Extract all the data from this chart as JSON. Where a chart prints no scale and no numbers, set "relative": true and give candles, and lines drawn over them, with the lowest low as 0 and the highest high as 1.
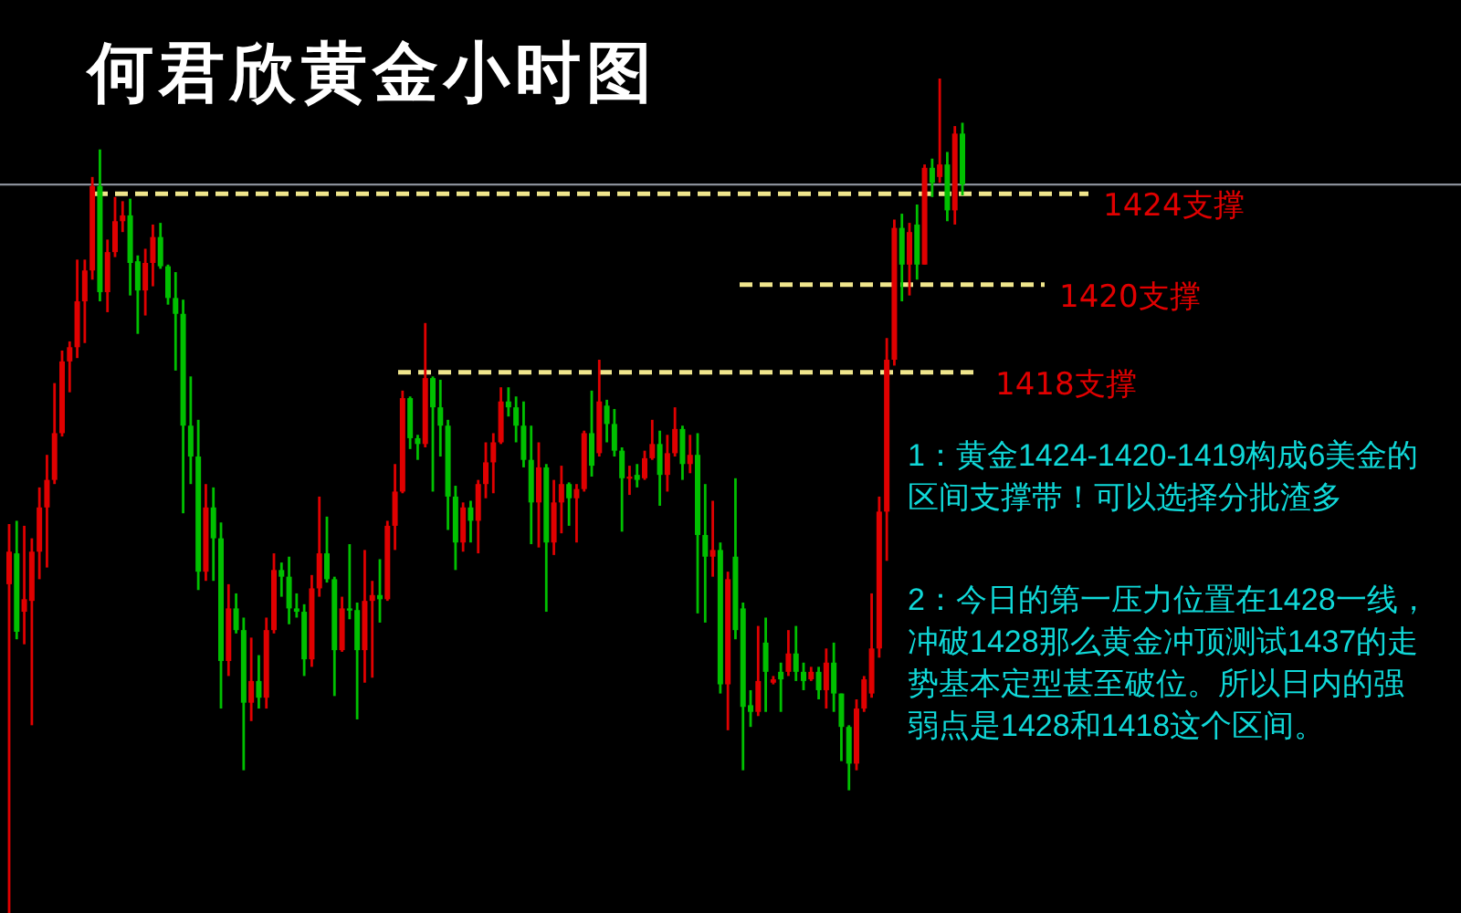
{
  "chart_data": {
    "type": "candlestick",
    "title": "何君欣黄金小时图",
    "relative": true,
    "categories": [
      null,
      null,
      null,
      null,
      null,
      null,
      null,
      null,
      null,
      null,
      null,
      null,
      null,
      null,
      null,
      null,
      null,
      null,
      null,
      null,
      null,
      null,
      null,
      null,
      null,
      null,
      null,
      null,
      null,
      null,
      null,
      null,
      null,
      null,
      null,
      null,
      null,
      null,
      null,
      null,
      null,
      null,
      null,
      null,
      null,
      null,
      null,
      null,
      null,
      null,
      null,
      null,
      null,
      null,
      null,
      null,
      null,
      null,
      null,
      null,
      null,
      null,
      null,
      null,
      null,
      null,
      null,
      null,
      null,
      null,
      null,
      null,
      null,
      null,
      null,
      null,
      null,
      null,
      null,
      null,
      null,
      null,
      null,
      null,
      null,
      null,
      null,
      null,
      null,
      null,
      null,
      null,
      null,
      null,
      null,
      null,
      null,
      null,
      null,
      null,
      null,
      null,
      null,
      null,
      null,
      null,
      null,
      null,
      null,
      null,
      null,
      null,
      null,
      null,
      null,
      null,
      null,
      null,
      null,
      null,
      null,
      null,
      null,
      null,
      null,
      null,
      null
    ],
    "ohlc": [
      [
        0.394,
        0.466,
        0,
        0.433
      ],
      [
        0.431,
        0.47,
        0.328,
        0.337
      ],
      [
        0.361,
        0.464,
        0.322,
        0.376
      ],
      [
        0.374,
        0.449,
        0.225,
        0.433
      ],
      [
        0.433,
        0.51,
        0.4,
        0.486
      ],
      [
        0.486,
        0.549,
        0.414,
        0.519
      ],
      [
        0.519,
        0.635,
        0.514,
        0.575
      ],
      [
        0.575,
        0.674,
        0.571,
        0.661
      ],
      [
        0.661,
        0.685,
        0.624,
        0.678
      ],
      [
        0.678,
        0.783,
        0.665,
        0.733
      ],
      [
        0.733,
        0.783,
        0.683,
        0.77
      ],
      [
        0.77,
        0.882,
        0.759,
        0.871
      ],
      [
        0.871,
        0.915,
        0.733,
        0.744
      ],
      [
        0.744,
        0.807,
        0.72,
        0.792
      ],
      [
        0.792,
        0.858,
        0.786,
        0.829
      ],
      [
        0.829,
        0.853,
        0.816,
        0.836
      ],
      [
        0.836,
        0.856,
        0.74,
        0.779
      ],
      [
        0.781,
        0.788,
        0.694,
        0.746
      ],
      [
        0.746,
        0.796,
        0.716,
        0.779
      ],
      [
        0.779,
        0.825,
        0.751,
        0.81
      ],
      [
        0.81,
        0.827,
        0.772,
        0.775
      ],
      [
        0.775,
        0.777,
        0.729,
        0.737
      ],
      [
        0.737,
        0.768,
        0.65,
        0.718
      ],
      [
        0.718,
        0.735,
        0.479,
        0.584
      ],
      [
        0.584,
        0.643,
        0.514,
        0.547
      ],
      [
        0.547,
        0.591,
        0.387,
        0.409
      ],
      [
        0.409,
        0.514,
        0.398,
        0.486
      ],
      [
        0.486,
        0.51,
        0.398,
        0.449
      ],
      [
        0.449,
        0.468,
        0.245,
        0.302
      ],
      [
        0.302,
        0.394,
        0.284,
        0.365
      ],
      [
        0.365,
        0.383,
        0.335,
        0.339
      ],
      [
        0.339,
        0.354,
        0.171,
        0.252
      ],
      [
        0.252,
        0.33,
        0.23,
        0.278
      ],
      [
        0.278,
        0.309,
        0.245,
        0.258
      ],
      [
        0.258,
        0.354,
        0.245,
        0.339
      ],
      [
        0.339,
        0.431,
        0.335,
        0.411
      ],
      [
        0.411,
        0.42,
        0.379,
        0.403
      ],
      [
        0.403,
        0.427,
        0.346,
        0.365
      ],
      [
        0.365,
        0.383,
        0.354,
        0.361
      ],
      [
        0.361,
        0.37,
        0.284,
        0.304
      ],
      [
        0.304,
        0.405,
        0.295,
        0.389
      ],
      [
        0.389,
        0.499,
        0.379,
        0.431
      ],
      [
        0.431,
        0.475,
        0.396,
        0.4
      ],
      [
        0.4,
        0.403,
        0.26,
        0.315
      ],
      [
        0.315,
        0.379,
        0.313,
        0.365
      ],
      [
        0.365,
        0.442,
        0.352,
        0.363
      ],
      [
        0.363,
        0.372,
        0.232,
        0.315
      ],
      [
        0.315,
        0.435,
        0.276,
        0.374
      ],
      [
        0.374,
        0.398,
        0.282,
        0.381
      ],
      [
        0.381,
        0.424,
        0.348,
        0.376
      ],
      [
        0.376,
        0.47,
        0.374,
        0.464
      ],
      [
        0.464,
        0.538,
        0.435,
        0.505
      ],
      [
        0.505,
        0.626,
        0.503,
        0.617
      ],
      [
        0.617,
        0.619,
        0.556,
        0.569
      ],
      [
        0.569,
        0.573,
        0.543,
        0.562
      ],
      [
        0.562,
        0.707,
        0.558,
        0.641
      ],
      [
        0.641,
        0.643,
        0.505,
        0.606
      ],
      [
        0.606,
        0.639,
        0.547,
        0.584
      ],
      [
        0.584,
        0.591,
        0.459,
        0.499
      ],
      [
        0.499,
        0.512,
        0.411,
        0.444
      ],
      [
        0.444,
        0.492,
        0.433,
        0.486
      ],
      [
        0.486,
        0.494,
        0.444,
        0.47
      ],
      [
        0.47,
        0.519,
        0.431,
        0.514
      ],
      [
        0.514,
        0.564,
        0.497,
        0.54
      ],
      [
        0.54,
        0.575,
        0.503,
        0.564
      ],
      [
        0.564,
        0.63,
        0.562,
        0.613
      ],
      [
        0.613,
        0.63,
        0.595,
        0.606
      ],
      [
        0.606,
        0.619,
        0.564,
        0.584
      ],
      [
        0.584,
        0.613,
        0.534,
        0.543
      ],
      [
        0.543,
        0.584,
        0.442,
        0.492
      ],
      [
        0.492,
        0.564,
        0.438,
        0.534
      ],
      [
        0.534,
        0.538,
        0.361,
        0.444
      ],
      [
        0.444,
        0.519,
        0.429,
        0.492
      ],
      [
        0.492,
        0.536,
        0.455,
        0.514
      ],
      [
        0.514,
        0.516,
        0.464,
        0.497
      ],
      [
        0.497,
        0.514,
        0.444,
        0.508
      ],
      [
        0.508,
        0.578,
        0.505,
        0.575
      ],
      [
        0.575,
        0.626,
        0.523,
        0.536
      ],
      [
        0.551,
        0.663,
        0.547,
        0.613
      ],
      [
        0.608,
        0.615,
        0.564,
        0.586
      ],
      [
        0.586,
        0.604,
        0.547,
        0.554
      ],
      [
        0.554,
        0.558,
        0.457,
        0.521
      ],
      [
        0.521,
        0.536,
        0.501,
        0.523
      ],
      [
        0.525,
        0.538,
        0.51,
        0.519
      ],
      [
        0.521,
        0.554,
        0.519,
        0.545
      ],
      [
        0.545,
        0.591,
        0.543,
        0.562
      ],
      [
        0.562,
        0.578,
        0.488,
        0.525
      ],
      [
        0.525,
        0.573,
        0.505,
        0.551
      ],
      [
        0.551,
        0.606,
        0.547,
        0.58
      ],
      [
        0.58,
        0.584,
        0.519,
        0.538
      ],
      [
        0.538,
        0.573,
        0.527,
        0.549
      ],
      [
        0.549,
        0.575,
        0.359,
        0.453
      ],
      [
        0.453,
        0.514,
        0.348,
        0.427
      ],
      [
        0.427,
        0.494,
        0.403,
        0.435
      ],
      [
        0.435,
        0.444,
        0.263,
        0.274
      ],
      [
        0.274,
        0.409,
        0.219,
        0.4
      ],
      [
        0.427,
        0.521,
        0.328,
        0.339
      ],
      [
        0.365,
        0.372,
        0.171,
        0.247
      ],
      [
        0.249,
        0.267,
        0.223,
        0.241
      ],
      [
        0.241,
        0.344,
        0.236,
        0.278
      ],
      [
        0.324,
        0.354,
        0.241,
        0.289
      ],
      [
        0.276,
        0.284,
        0.274,
        0.28
      ],
      [
        0.289,
        0.3,
        0.241,
        0.28
      ],
      [
        0.289,
        0.339,
        0.284,
        0.311
      ],
      [
        0.311,
        0.344,
        0.278,
        0.289
      ],
      [
        0.289,
        0.3,
        0.267,
        0.278
      ],
      [
        0.28,
        0.295,
        0.278,
        0.289
      ],
      [
        0.289,
        0.295,
        0.256,
        0.267
      ],
      [
        0.267,
        0.317,
        0.245,
        0.3
      ],
      [
        0.3,
        0.324,
        0.241,
        0.263
      ],
      [
        0.263,
        0.263,
        0.182,
        0.223
      ],
      [
        0.223,
        0.225,
        0.147,
        0.179
      ],
      [
        0.179,
        0.256,
        0.171,
        0.245
      ],
      [
        0.245,
        0.284,
        0.241,
        0.28
      ],
      [
        0.263,
        0.383,
        0.258,
        0.317
      ],
      [
        0.317,
        0.499,
        0.306,
        0.481
      ],
      [
        0.481,
        0.689,
        0.422,
        0.663
      ],
      [
        0.663,
        0.831,
        0.656,
        0.821
      ],
      [
        0.821,
        0.838,
        0.733,
        0.777
      ],
      [
        0.777,
        0.827,
        0.74,
        0.816
      ],
      [
        0.825,
        0.849,
        0.759,
        0.777
      ],
      [
        0.777,
        0.897,
        0.777,
        0.893
      ],
      [
        0.893,
        0.904,
        0.858,
        0.875
      ],
      [
        0.882,
        1,
        0.875,
        0.897
      ],
      [
        0.897,
        0.912,
        0.829,
        0.842
      ],
      [
        0.842,
        0.943,
        0.825,
        0.934
      ],
      [
        0.934,
        0.947,
        0.86,
        0.873
      ]
    ],
    "colors": [
      "#e00000",
      "#00c000",
      "#e00000",
      "#e00000",
      "#e00000",
      "#e00000",
      "#e00000",
      "#e00000",
      "#e00000",
      "#e00000",
      "#e00000",
      "#e00000",
      "#00c000",
      "#e00000",
      "#e00000",
      "#e00000",
      "#00c000",
      "#00c000",
      "#e00000",
      "#e00000",
      "#00c000",
      "#00c000",
      "#00c000",
      "#00c000",
      "#00c000",
      "#00c000",
      "#e00000",
      "#00c000",
      "#00c000",
      "#e00000",
      "#00c000",
      "#00c000",
      "#e00000",
      "#00c000",
      "#e00000",
      "#e00000",
      "#00c000",
      "#00c000",
      "#00c000",
      "#00c000",
      "#e00000",
      "#e00000",
      "#00c000",
      "#00c000",
      "#e00000",
      "#00c000",
      "#00c000",
      "#e00000",
      "#e00000",
      "#00c000",
      "#e00000",
      "#e00000",
      "#e00000",
      "#00c000",
      "#00c000",
      "#e00000",
      "#00c000",
      "#00c000",
      "#00c000",
      "#00c000",
      "#e00000",
      "#00c000",
      "#e00000",
      "#e00000",
      "#e00000",
      "#e00000",
      "#00c000",
      "#00c000",
      "#00c000",
      "#00c000",
      "#e00000",
      "#00c000",
      "#e00000",
      "#e00000",
      "#00c000",
      "#e00000",
      "#e00000",
      "#00c000",
      "#e00000",
      "#00c000",
      "#00c000",
      "#00c000",
      "#e00000",
      "#00c000",
      "#e00000",
      "#e00000",
      "#00c000",
      "#e00000",
      "#e00000",
      "#00c000",
      "#e00000",
      "#00c000",
      "#00c000",
      "#e00000",
      "#00c000",
      "#e00000",
      "#00c000",
      "#00c000",
      "#00c000",
      "#e00000",
      "#00c000",
      "#e00000",
      "#00c000",
      "#e00000",
      "#00c000",
      "#00c000",
      "#e00000",
      "#00c000",
      "#e00000",
      "#00c000",
      "#00c000",
      "#00c000",
      "#e00000",
      "#e00000",
      "#e00000",
      "#e00000",
      "#e00000",
      "#e00000",
      "#00c000",
      "#e00000",
      "#00c000",
      "#e00000",
      "#00c000",
      "#e00000",
      "#00c000",
      "#e00000",
      "#00c000"
    ],
    "ref_lines": [
      {
        "axis": "y",
        "value": 0.873,
        "label": null,
        "color": "#8a8f99",
        "line_style": "solid"
      },
      {
        "axis": "y",
        "value": 0.862,
        "label": "1424支撑",
        "color": "#f0e68c",
        "line_style": "dashed"
      },
      {
        "axis": "y",
        "value": 0.753,
        "label": "1420支撑",
        "color": "#f0e68c",
        "line_style": "dashed"
      },
      {
        "axis": "y",
        "value": 0.648,
        "label": "1418支撑",
        "color": "#f0e68c",
        "line_style": "dashed"
      }
    ],
    "annotations": [
      "1：黄金1424-1420-1419构成6美金的区间支撑带！可以选择分批渣多",
      "2：今日的第一压力位置在1428一线，冲破1428那么黄金冲顶测试1437的走势基本定型甚至破位。所以日内的强弱点是1428和1418这个区间。"
    ]
  }
}
